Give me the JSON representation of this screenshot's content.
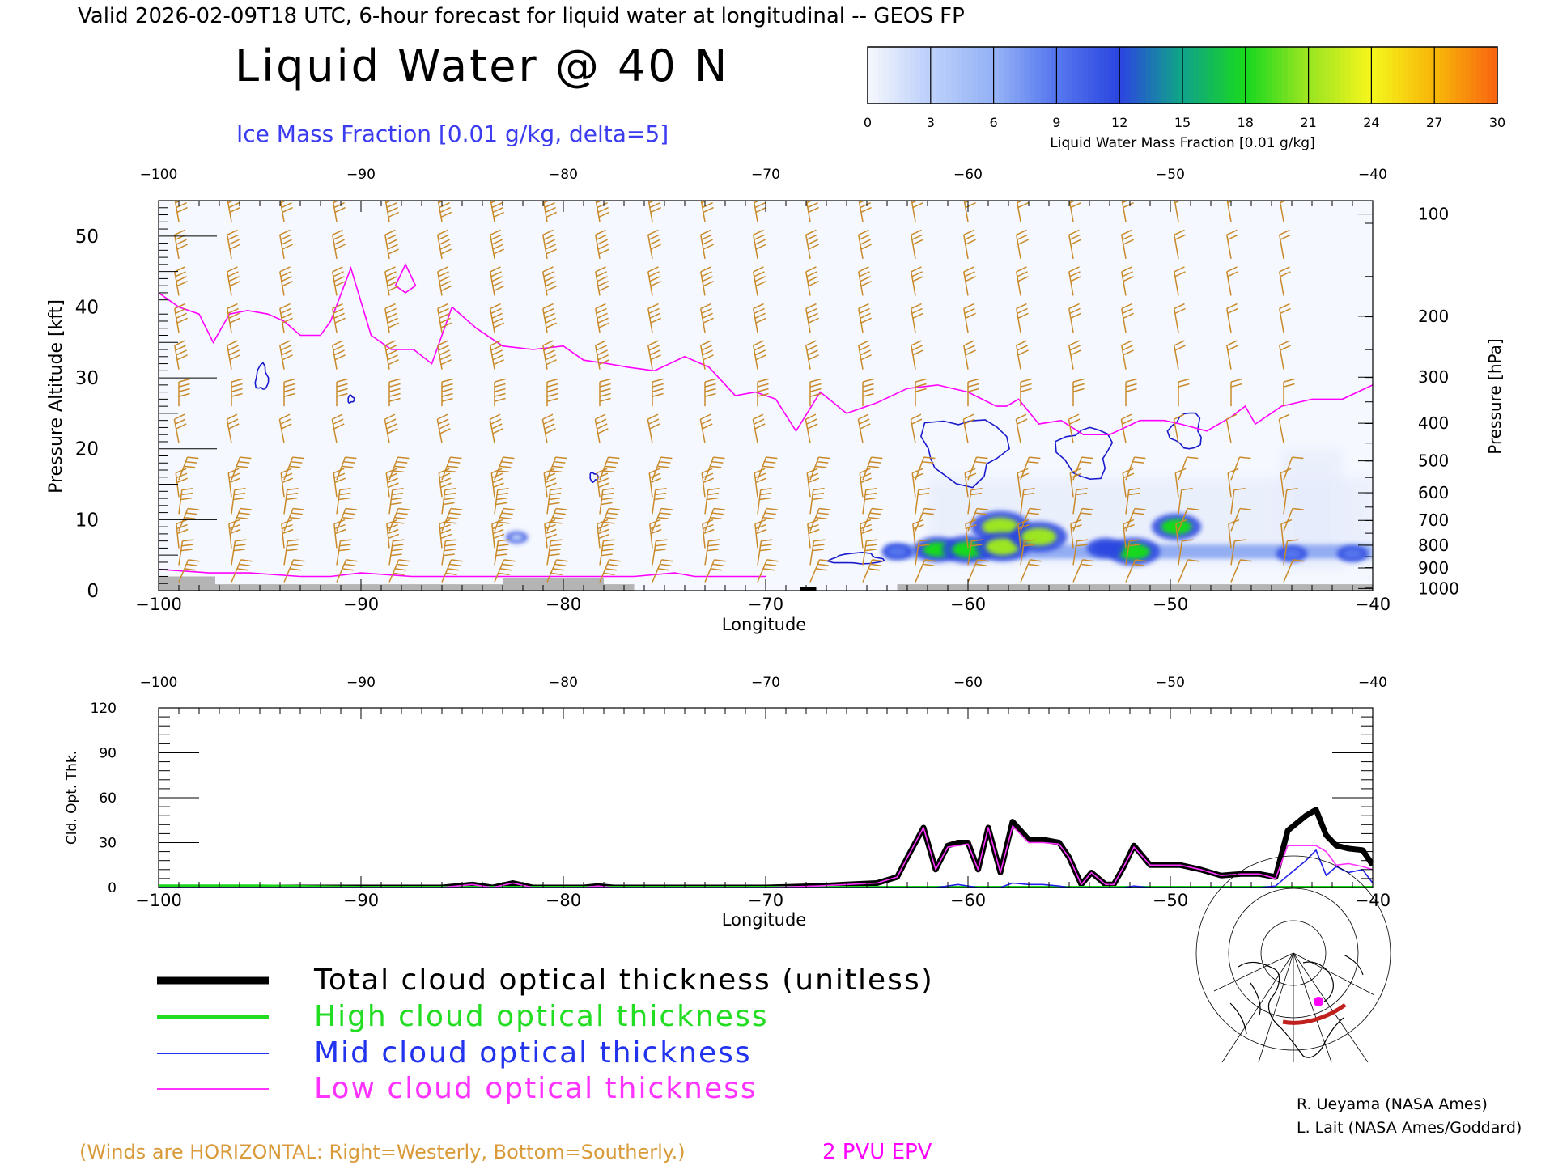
{
  "header": {
    "line": "Valid 2026-02-09T18 UTC, 6-hour forecast for liquid water at longitudinal -- GEOS FP",
    "title": "Liquid Water @ 40 N",
    "subtitle": "Ice Mass Fraction [0.01 g/kg, delta=5]"
  },
  "colorbar": {
    "label": "Liquid Water Mass Fraction [0.01 g/kg]",
    "ticks": [
      "0",
      "3",
      "6",
      "9",
      "12",
      "15",
      "18",
      "21",
      "24",
      "27",
      "30"
    ],
    "colors": [
      "#f4f6fd",
      "#bcd0fa",
      "#94b2f5",
      "#5576ee",
      "#2b47e0",
      "#10a488",
      "#19d81f",
      "#9be521",
      "#f4f51c",
      "#f8b609",
      "#f86710",
      "#f02a0a"
    ]
  },
  "colors": {
    "wind_barb": "#c98a2a",
    "epv": "#ff00ff",
    "ice_contour": "#1a1acd",
    "ground": "#b4b4b4",
    "total": "#000000",
    "high": "#18d618",
    "mid": "#2020e8",
    "low": "#ff33ff"
  },
  "chart_data": [
    {
      "type": "heatmap",
      "xlabel": "Longitude",
      "ylabel_left": "Pressure Altitude [kft]",
      "ylabel_right": "Pressure [hPa]",
      "xlim": [
        -100,
        -40
      ],
      "ylim": [
        0,
        55
      ],
      "x_ticks": [
        -100,
        -90,
        -80,
        -70,
        -60,
        -50,
        -40
      ],
      "x_tick_labels": [
        "−100",
        "−90",
        "−80",
        "−70",
        "−60",
        "−50",
        "−40"
      ],
      "y_ticks": [
        0,
        10,
        20,
        30,
        40,
        50
      ],
      "pressure_ticks": [
        {
          "label": "100",
          "kft": 53.1
        },
        {
          "label": "200",
          "kft": 38.7
        },
        {
          "label": "300",
          "kft": 30.1
        },
        {
          "label": "400",
          "kft": 23.6
        },
        {
          "label": "500",
          "kft": 18.3
        },
        {
          "label": "600",
          "kft": 13.8
        },
        {
          "label": "700",
          "kft": 9.9
        },
        {
          "label": "800",
          "kft": 6.4
        },
        {
          "label": "900",
          "kft": 3.2
        },
        {
          "label": "1000",
          "kft": 0.3
        }
      ],
      "liquid_water_blobs": [
        {
          "lon": -61.5,
          "kft": 5.8,
          "value": 15
        },
        {
          "lon": -60,
          "kft": 5.8,
          "value": 17
        },
        {
          "lon": -58.4,
          "kft": 9.0,
          "value": 20
        },
        {
          "lon": -58.3,
          "kft": 6.2,
          "value": 18
        },
        {
          "lon": -56.5,
          "kft": 7.6,
          "value": 19
        },
        {
          "lon": -51.8,
          "kft": 5.5,
          "value": 17
        },
        {
          "lon": -49.7,
          "kft": 9.0,
          "value": 16
        },
        {
          "lon": -53.2,
          "kft": 6.0,
          "value": 11
        },
        {
          "lon": -44,
          "kft": 5.2,
          "value": 8
        },
        {
          "lon": -41,
          "kft": 5.2,
          "value": 8
        },
        {
          "lon": -63.5,
          "kft": 5.5,
          "value": 8
        },
        {
          "lon": -82.3,
          "kft": 7.5,
          "value": 4
        }
      ],
      "epv_2pvu_tropopause": {
        "lon": [
          -100,
          -99,
          -98,
          -97.3,
          -96.5,
          -95.6,
          -94.6,
          -93.8,
          -93,
          -92,
          -91.5,
          -90.5,
          -89.5,
          -88.5,
          -87.4,
          -86.5,
          -85.5,
          -84.3,
          -83,
          -81.5,
          -80,
          -79,
          -77.8,
          -76.8,
          -75.5,
          -74,
          -72.8,
          -71.5,
          -70.5,
          -69.5,
          -68.5,
          -67.3,
          -66,
          -64.5,
          -63,
          -61.5,
          -60,
          -58.6,
          -58.1,
          -57.5,
          -56.5,
          -55.4,
          -54.3,
          -53,
          -51.5,
          -50.3,
          -49.5,
          -48.2,
          -47,
          -46.3,
          -45.8,
          -44.5,
          -43,
          -41.5,
          -40
        ],
        "kft": [
          42,
          40,
          39,
          35,
          39,
          39.5,
          39,
          38,
          36,
          36,
          38,
          45.5,
          36,
          34,
          34,
          32,
          40,
          37,
          34.5,
          34,
          34.5,
          32.5,
          32,
          31.5,
          31,
          33,
          31.5,
          27.5,
          28,
          27,
          22.5,
          28,
          25,
          26.5,
          28.5,
          29,
          28,
          26,
          26,
          27,
          23.5,
          24,
          22,
          22,
          24,
          24,
          23.5,
          22.5,
          24.5,
          26,
          23.5,
          26,
          27,
          27,
          29
        ]
      },
      "epv_surface": {
        "lon": [
          -100,
          -97.5,
          -95.5,
          -93,
          -91.5,
          -90,
          -88.5,
          -87.5,
          -84,
          -81,
          -77.5,
          -76.5,
          -74.5,
          -73.5,
          -72.5,
          -70
        ],
        "kft": [
          3,
          2.5,
          2.5,
          2,
          2,
          2.5,
          2.2,
          2,
          2,
          2,
          2,
          2,
          2.5,
          2,
          2,
          2
        ]
      },
      "ice_contour_centers": [
        {
          "lon": -94.9,
          "kft": 30,
          "w_deg": 0.6,
          "h_kft": 3.5
        },
        {
          "lon": -90.5,
          "kft": 27,
          "w_deg": 0.3,
          "h_kft": 1
        },
        {
          "lon": -78.5,
          "kft": 16,
          "w_deg": 0.4,
          "h_kft": 1.2
        },
        {
          "lon": -60.2,
          "kft": 20,
          "w_deg": 4,
          "h_kft": 9
        },
        {
          "lon": -54.2,
          "kft": 19.5,
          "w_deg": 2.5,
          "h_kft": 7
        },
        {
          "lon": -49.2,
          "kft": 22.5,
          "w_deg": 1.5,
          "h_kft": 5
        },
        {
          "lon": -65.5,
          "kft": 4.5,
          "w_deg": 2.5,
          "h_kft": 1.5
        }
      ],
      "ground_segments": [
        {
          "from": -100,
          "to": -97.2,
          "kft": 2.0
        },
        {
          "from": -97.2,
          "to": -83,
          "kft": 0.9
        },
        {
          "from": -83,
          "to": -78,
          "kft": 1.8
        },
        {
          "from": -78,
          "to": -76.5,
          "kft": 0.9
        },
        {
          "from": -63.5,
          "to": -40,
          "kft": 0.9
        }
      ]
    },
    {
      "type": "line",
      "xlabel": "Longitude",
      "ylabel": "Cld. Opt. Thk.",
      "xlim": [
        -100,
        -40
      ],
      "ylim": [
        0,
        120
      ],
      "y_ticks": [
        0,
        30,
        60,
        90,
        120
      ],
      "x_ticks": [
        -100,
        -90,
        -80,
        -70,
        -60,
        -50,
        -40
      ],
      "x_tick_labels": [
        "−100",
        "−90",
        "−80",
        "−70",
        "−60",
        "−50",
        "−40"
      ],
      "x": [
        -100,
        -95,
        -90,
        -86,
        -84.5,
        -83.5,
        -82.5,
        -81.5,
        -80.5,
        -79,
        -78.3,
        -77.5,
        -70,
        -67.5,
        -66,
        -64.5,
        -63.5,
        -63,
        -62.2,
        -61.6,
        -61,
        -60.5,
        -60,
        -59.5,
        -59,
        -58.4,
        -57.8,
        -57,
        -56.3,
        -55.5,
        -55,
        -54.4,
        -53.9,
        -53.2,
        -52.8,
        -52.3,
        -51.8,
        -51,
        -50.5,
        -49.5,
        -48.5,
        -47.5,
        -46.5,
        -45.6,
        -44.8,
        -44.2,
        -43.3,
        -42.8,
        -42.3,
        -41.8,
        -41.2,
        -40.5,
        -40
      ],
      "series": [
        {
          "name": "Total cloud optical thickness (unitless)",
          "values": [
            0,
            0,
            0,
            0,
            2,
            0,
            3,
            0,
            0,
            0,
            1,
            0,
            0,
            1,
            2,
            3,
            7,
            20,
            40,
            12,
            28,
            30,
            30,
            12,
            40,
            10,
            44,
            32,
            32,
            30,
            20,
            2,
            10,
            2,
            2,
            14,
            28,
            15,
            15,
            15,
            12,
            8,
            9,
            9,
            7,
            38,
            48,
            52,
            35,
            28,
            26,
            25,
            15
          ]
        },
        {
          "name": "High cloud optical thickness",
          "values": [
            1,
            1,
            0,
            0,
            0,
            0,
            0,
            0,
            0,
            0,
            0,
            0,
            0,
            0,
            0,
            0,
            0,
            0,
            0,
            0,
            0,
            0,
            0,
            0,
            0,
            0,
            0,
            0,
            0,
            0,
            0,
            0,
            0,
            0,
            0,
            0,
            0,
            0,
            0,
            0,
            0,
            0,
            0,
            0,
            0,
            0,
            0,
            0,
            0,
            0,
            0,
            0,
            0
          ]
        },
        {
          "name": "Mid cloud optical thickness",
          "values": [
            0,
            0,
            0,
            0,
            0,
            0,
            0,
            0,
            0,
            0,
            0,
            0,
            0,
            0,
            0,
            0,
            0,
            0,
            0,
            0,
            1,
            2,
            1,
            0,
            0,
            0,
            3,
            2,
            2,
            1,
            0,
            0,
            0,
            0,
            0,
            0,
            1,
            0,
            0,
            0,
            0,
            0,
            0,
            0,
            1,
            8,
            18,
            25,
            8,
            14,
            10,
            12,
            3
          ]
        },
        {
          "name": "Low cloud optical thickness",
          "values": [
            0,
            0,
            0,
            0,
            2,
            0,
            3,
            0,
            0,
            0,
            1,
            0,
            0,
            1,
            2,
            3,
            7,
            20,
            40,
            12,
            27,
            28,
            29,
            12,
            40,
            10,
            41,
            30,
            30,
            29,
            20,
            2,
            10,
            2,
            2,
            14,
            27,
            15,
            15,
            15,
            12,
            8,
            9,
            9,
            6,
            28,
            28,
            28,
            24,
            15,
            16,
            14,
            12
          ]
        }
      ]
    }
  ],
  "legend": {
    "items": [
      {
        "label": "Total cloud optical thickness (unitless)",
        "color": "#000000"
      },
      {
        "label": "High cloud optical thickness",
        "color": "#22dd22"
      },
      {
        "label": "Mid cloud optical thickness",
        "color": "#2233ee"
      },
      {
        "label": "Low cloud optical thickness",
        "color": "#ff33ff"
      }
    ]
  },
  "footer": {
    "winds_note": "(Winds are HORIZONTAL: Right=Westerly, Bottom=Southerly.)",
    "epv_label": "2 PVU EPV",
    "credit1": "R. Ueyama (NASA Ames)",
    "credit2": "L. Lait (NASA Ames/Goddard)"
  }
}
